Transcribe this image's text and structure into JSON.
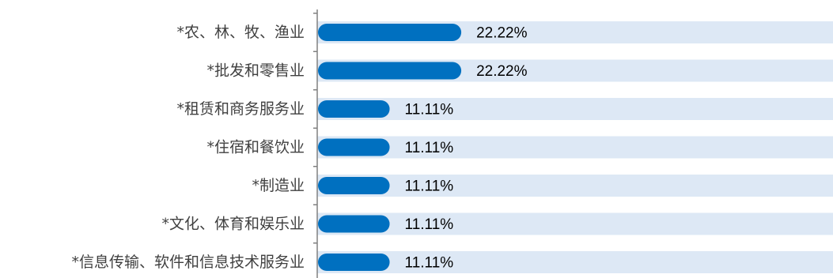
{
  "chart_data": {
    "type": "bar",
    "orientation": "horizontal",
    "categories": [
      "*农、林、牧、渔业",
      "*批发和零售业",
      "*租赁和商务服务业",
      "*住宿和餐饮业",
      "*制造业",
      "*文化、体育和娱乐业",
      "*信息传输、软件和信息技术服务业"
    ],
    "values": [
      22.22,
      22.22,
      11.11,
      11.11,
      11.11,
      11.11,
      11.11
    ],
    "value_labels": [
      "22.22%",
      "22.22%",
      "11.11%",
      "11.11%",
      "11.11%",
      "11.11%",
      "11.11%"
    ],
    "unit": "%",
    "xlim": [
      0,
      80
    ],
    "grid": false,
    "legend": "none",
    "colors": {
      "bar": "#0070c0",
      "track": "#dde8f5",
      "axis": "#808080",
      "category_text": "#404040",
      "value_text": "#000000"
    }
  }
}
